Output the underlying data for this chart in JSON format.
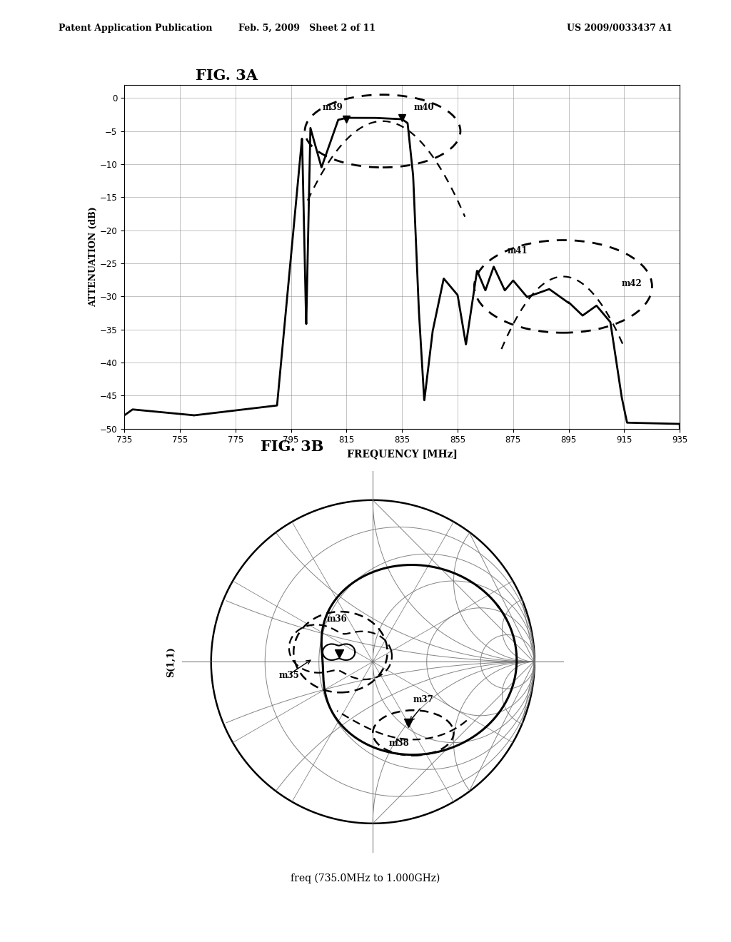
{
  "fig3a_title": "FIG. 3A",
  "fig3b_title": "FIG. 3B",
  "header_left": "Patent Application Publication",
  "header_mid": "Feb. 5, 2009   Sheet 2 of 11",
  "header_right": "US 2009/0033437 A1",
  "fig3a": {
    "xlabel": "FREQUENCY [MHz]",
    "ylabel": "ATTENUATION (dB)",
    "xlim": [
      735,
      935
    ],
    "ylim": [
      -50,
      2
    ],
    "xticks": [
      735,
      755,
      775,
      795,
      815,
      835,
      855,
      875,
      895,
      915,
      935
    ],
    "yticks": [
      0,
      -5,
      -10,
      -15,
      -20,
      -25,
      -30,
      -35,
      -40,
      -45,
      -50
    ]
  },
  "fig3b": {
    "ylabel": "S(1,1)",
    "caption": "freq (735.0MHz to 1.000GHz)"
  },
  "background_color": "#ffffff",
  "line_color": "#000000",
  "grid_color": "#888888"
}
